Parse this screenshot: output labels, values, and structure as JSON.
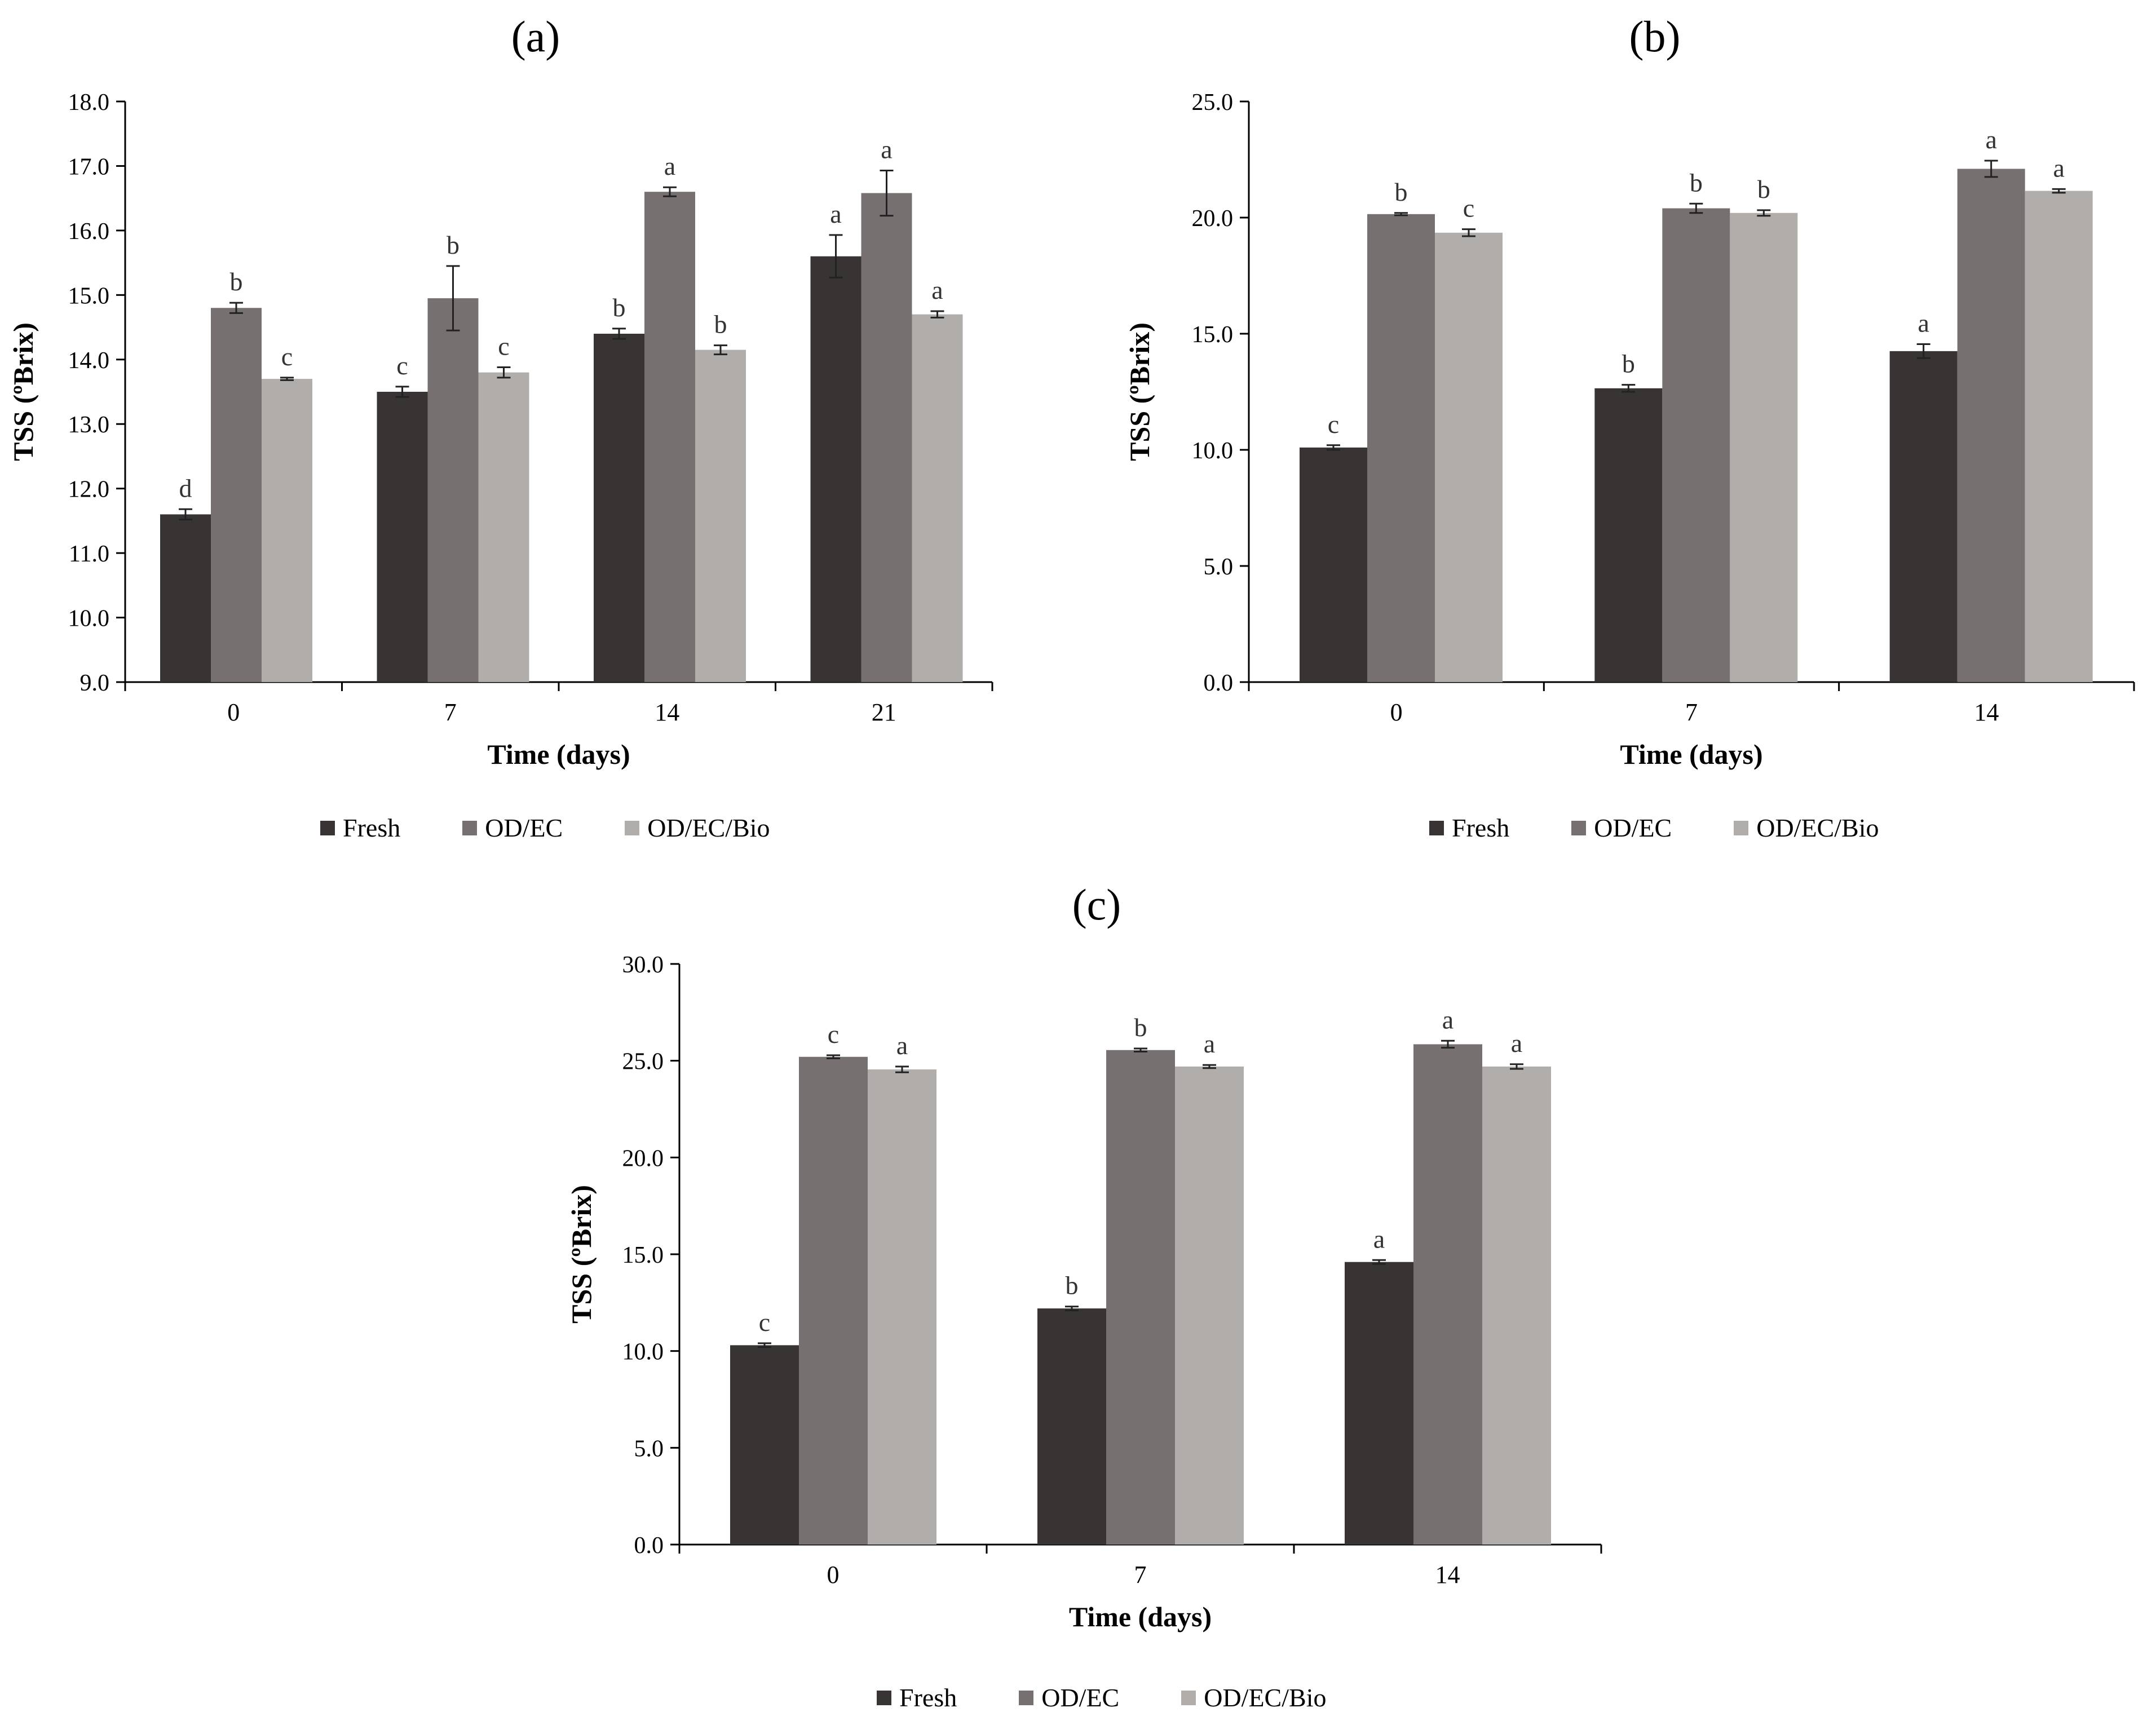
{
  "colors": {
    "fresh": "#383434",
    "odec": "#767070",
    "odecbio": "#b0adab"
  },
  "chart_data": [
    {
      "type": "bar",
      "panel": "(a)",
      "categories": [
        "0",
        "7",
        "14",
        "21"
      ],
      "xlabel": "Time (days)",
      "ylabel": "TSS (ºBrix)",
      "ylim": [
        9.0,
        18.0
      ],
      "yticks": [
        "9.0",
        "10.0",
        "11.0",
        "12.0",
        "13.0",
        "14.0",
        "15.0",
        "16.0",
        "17.0",
        "18.0"
      ],
      "series": [
        {
          "name": "Fresh",
          "values": [
            11.6,
            13.5,
            14.4,
            15.6
          ],
          "errors": [
            0.08,
            0.08,
            0.08,
            0.33
          ],
          "letters": [
            "d",
            "c",
            "b",
            "a"
          ]
        },
        {
          "name": "OD/EC",
          "values": [
            14.8,
            14.95,
            16.6,
            16.58
          ],
          "errors": [
            0.08,
            0.5,
            0.07,
            0.35
          ],
          "letters": [
            "b",
            "b",
            "a",
            "a"
          ]
        },
        {
          "name": "OD/EC/Bio",
          "values": [
            13.7,
            13.8,
            14.15,
            14.7
          ],
          "errors": [
            0.02,
            0.08,
            0.07,
            0.05
          ],
          "letters": [
            "c",
            "c",
            "b",
            "a"
          ]
        }
      ]
    },
    {
      "type": "bar",
      "panel": "(b)",
      "categories": [
        "0",
        "7",
        "14"
      ],
      "xlabel": "Time (days)",
      "ylabel": "TSS (ºBrix)",
      "ylim": [
        0.0,
        25.0
      ],
      "yticks": [
        "0.0",
        "5.0",
        "10.0",
        "15.0",
        "20.0",
        "25.0"
      ],
      "series": [
        {
          "name": "Fresh",
          "values": [
            10.1,
            12.65,
            14.25
          ],
          "errors": [
            0.1,
            0.15,
            0.3
          ],
          "letters": [
            "c",
            "b",
            "a"
          ]
        },
        {
          "name": "OD/EC",
          "values": [
            20.15,
            20.4,
            22.1
          ],
          "errors": [
            0.05,
            0.2,
            0.35
          ],
          "letters": [
            "b",
            "b",
            "a"
          ]
        },
        {
          "name": "OD/EC/Bio",
          "values": [
            19.35,
            20.2,
            21.15
          ],
          "errors": [
            0.15,
            0.12,
            0.08
          ],
          "letters": [
            "c",
            "b",
            "a"
          ]
        }
      ]
    },
    {
      "type": "bar",
      "panel": "(c)",
      "categories": [
        "0",
        "7",
        "14"
      ],
      "xlabel": "Time (days)",
      "ylabel": "TSS (ºBrix)",
      "ylim": [
        0.0,
        30.0
      ],
      "yticks": [
        "0.0",
        "5.0",
        "10.0",
        "15.0",
        "20.0",
        "25.0",
        "30.0"
      ],
      "series": [
        {
          "name": "Fresh",
          "values": [
            10.3,
            12.2,
            14.6
          ],
          "errors": [
            0.1,
            0.1,
            0.1
          ],
          "letters": [
            "c",
            "b",
            "a"
          ]
        },
        {
          "name": "OD/EC",
          "values": [
            25.2,
            25.55,
            25.85
          ],
          "errors": [
            0.08,
            0.08,
            0.18
          ],
          "letters": [
            "c",
            "b",
            "a"
          ]
        },
        {
          "name": "OD/EC/Bio",
          "values": [
            24.55,
            24.7,
            24.7
          ],
          "errors": [
            0.15,
            0.08,
            0.12
          ],
          "letters": [
            "a",
            "a",
            "a"
          ]
        }
      ]
    }
  ]
}
